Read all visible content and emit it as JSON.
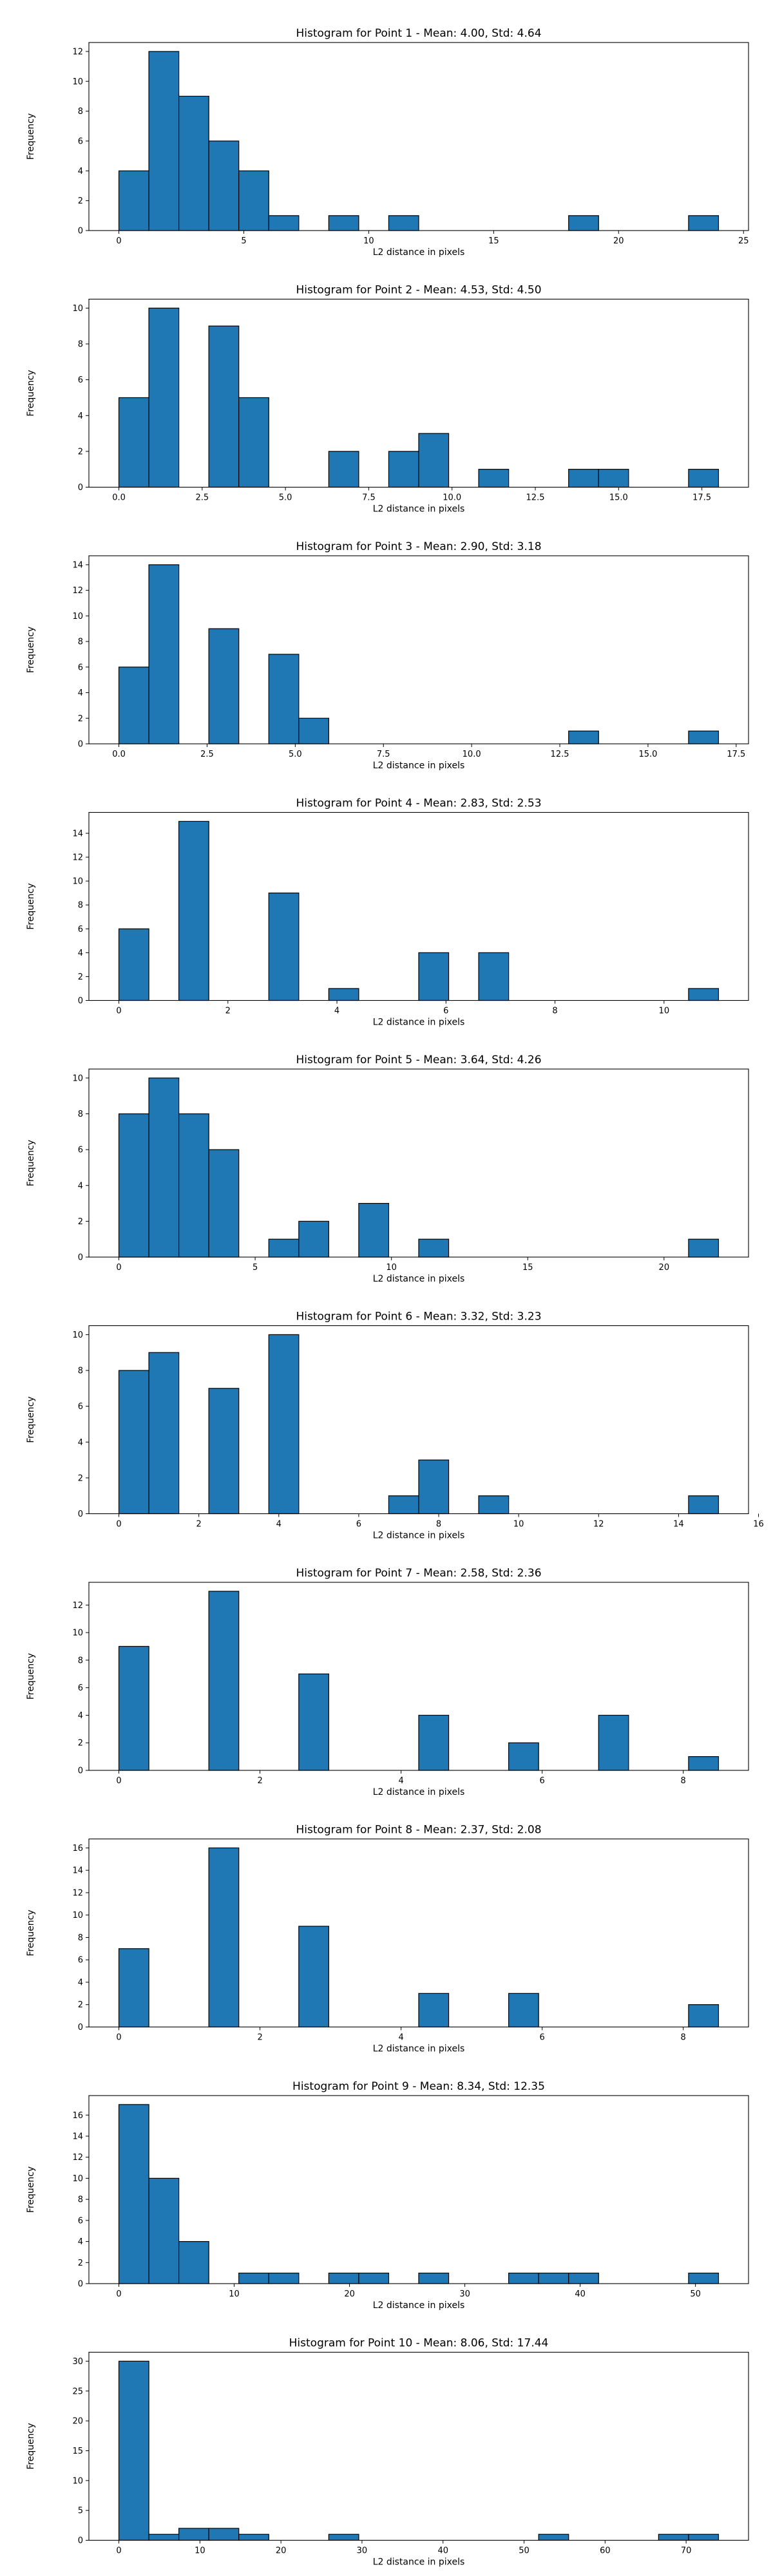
{
  "figure": {
    "colors": {
      "bar_fill": "#1f77b4",
      "bar_edge": "#000000",
      "axes": "#000000",
      "background": "#ffffff"
    }
  },
  "chart_data": [
    {
      "type": "bar",
      "title": "Histogram for Point 1 - Mean: 4.00, Std: 4.64",
      "xlabel": "L2 distance in pixels",
      "ylabel": "Frequency",
      "xlim": [
        -1.2,
        25.2
      ],
      "ylim": [
        0,
        12.6
      ],
      "xticks": [
        0,
        5,
        10,
        15,
        20,
        25
      ],
      "xtick_labels": [
        "0",
        "5",
        "10",
        "15",
        "20",
        "25"
      ],
      "yticks": [
        0,
        2,
        4,
        6,
        8,
        10,
        12
      ],
      "ytick_labels": [
        "0",
        "2",
        "4",
        "6",
        "8",
        "10",
        "12"
      ],
      "bins": [
        {
          "start": 0.0,
          "end": 1.2,
          "count": 4
        },
        {
          "start": 1.2,
          "end": 2.4,
          "count": 12
        },
        {
          "start": 2.4,
          "end": 3.6,
          "count": 9
        },
        {
          "start": 3.6,
          "end": 4.8,
          "count": 6
        },
        {
          "start": 4.8,
          "end": 6.0,
          "count": 4
        },
        {
          "start": 6.0,
          "end": 7.2,
          "count": 1
        },
        {
          "start": 8.4,
          "end": 9.6,
          "count": 1
        },
        {
          "start": 10.8,
          "end": 12.0,
          "count": 1
        },
        {
          "start": 18.0,
          "end": 19.2,
          "count": 1
        },
        {
          "start": 22.8,
          "end": 24.0,
          "count": 1
        }
      ]
    },
    {
      "type": "bar",
      "title": "Histogram for Point 2 - Mean: 4.53, Std: 4.50",
      "xlabel": "L2 distance in pixels",
      "ylabel": "Frequency",
      "xlim": [
        -0.9,
        18.9
      ],
      "ylim": [
        0,
        10.5
      ],
      "xticks": [
        0,
        2.5,
        5,
        7.5,
        10,
        12.5,
        15,
        17.5
      ],
      "xtick_labels": [
        "0.0",
        "2.5",
        "5.0",
        "7.5",
        "10.0",
        "12.5",
        "15.0",
        "17.5"
      ],
      "yticks": [
        0,
        2,
        4,
        6,
        8,
        10
      ],
      "ytick_labels": [
        "0",
        "2",
        "4",
        "6",
        "8",
        "10"
      ],
      "bins": [
        {
          "start": 0.0,
          "end": 0.9,
          "count": 5
        },
        {
          "start": 0.9,
          "end": 1.8,
          "count": 10
        },
        {
          "start": 2.7,
          "end": 3.6,
          "count": 9
        },
        {
          "start": 3.6,
          "end": 4.5,
          "count": 5
        },
        {
          "start": 6.3,
          "end": 7.2,
          "count": 2
        },
        {
          "start": 8.1,
          "end": 9.0,
          "count": 2
        },
        {
          "start": 9.0,
          "end": 9.9,
          "count": 3
        },
        {
          "start": 10.8,
          "end": 11.7,
          "count": 1
        },
        {
          "start": 13.5,
          "end": 14.4,
          "count": 1
        },
        {
          "start": 14.4,
          "end": 15.3,
          "count": 1
        },
        {
          "start": 17.1,
          "end": 18.0,
          "count": 1
        }
      ]
    },
    {
      "type": "bar",
      "title": "Histogram for Point 3 - Mean: 2.90, Std: 3.18",
      "xlabel": "L2 distance in pixels",
      "ylabel": "Frequency",
      "xlim": [
        -0.85,
        17.85
      ],
      "ylim": [
        0,
        14.7
      ],
      "xticks": [
        0,
        2.5,
        5,
        7.5,
        10,
        12.5,
        15,
        17.5
      ],
      "xtick_labels": [
        "0.0",
        "2.5",
        "5.0",
        "7.5",
        "10.0",
        "12.5",
        "15.0",
        "17.5"
      ],
      "yticks": [
        0,
        2,
        4,
        6,
        8,
        10,
        12,
        14
      ],
      "ytick_labels": [
        "0",
        "2",
        "4",
        "6",
        "8",
        "10",
        "12",
        "14"
      ],
      "bins": [
        {
          "start": 0.0,
          "end": 0.85,
          "count": 6
        },
        {
          "start": 0.85,
          "end": 1.7,
          "count": 14
        },
        {
          "start": 2.55,
          "end": 3.4,
          "count": 9
        },
        {
          "start": 4.25,
          "end": 5.1,
          "count": 7
        },
        {
          "start": 5.1,
          "end": 5.95,
          "count": 2
        },
        {
          "start": 12.75,
          "end": 13.6,
          "count": 1
        },
        {
          "start": 16.15,
          "end": 17.0,
          "count": 1
        }
      ]
    },
    {
      "type": "bar",
      "title": "Histogram for Point 4 - Mean: 2.83, Std: 2.53",
      "xlabel": "L2 distance in pixels",
      "ylabel": "Frequency",
      "xlim": [
        -0.55,
        11.55
      ],
      "ylim": [
        0,
        15.75
      ],
      "xticks": [
        0,
        2,
        4,
        6,
        8,
        10
      ],
      "xtick_labels": [
        "0",
        "2",
        "4",
        "6",
        "8",
        "10"
      ],
      "yticks": [
        0,
        2,
        4,
        6,
        8,
        10,
        12,
        14
      ],
      "ytick_labels": [
        "0",
        "2",
        "4",
        "6",
        "8",
        "10",
        "12",
        "14"
      ],
      "bins": [
        {
          "start": 0.0,
          "end": 0.55,
          "count": 6
        },
        {
          "start": 1.1,
          "end": 1.65,
          "count": 15
        },
        {
          "start": 2.75,
          "end": 3.3,
          "count": 9
        },
        {
          "start": 3.85,
          "end": 4.4,
          "count": 1
        },
        {
          "start": 5.5,
          "end": 6.05,
          "count": 4
        },
        {
          "start": 6.6,
          "end": 7.15,
          "count": 4
        },
        {
          "start": 10.45,
          "end": 11.0,
          "count": 1
        }
      ]
    },
    {
      "type": "bar",
      "title": "Histogram for Point 5 - Mean: 3.64, Std: 4.26",
      "xlabel": "L2 distance in pixels",
      "ylabel": "Frequency",
      "xlim": [
        -1.1,
        23.1
      ],
      "ylim": [
        0,
        10.5
      ],
      "xticks": [
        0,
        5,
        10,
        15,
        20
      ],
      "xtick_labels": [
        "0",
        "5",
        "10",
        "15",
        "20"
      ],
      "yticks": [
        0,
        2,
        4,
        6,
        8,
        10
      ],
      "ytick_labels": [
        "0",
        "2",
        "4",
        "6",
        "8",
        "10"
      ],
      "bins": [
        {
          "start": 0.0,
          "end": 1.1,
          "count": 8
        },
        {
          "start": 1.1,
          "end": 2.2,
          "count": 10
        },
        {
          "start": 2.2,
          "end": 3.3,
          "count": 8
        },
        {
          "start": 3.3,
          "end": 4.4,
          "count": 6
        },
        {
          "start": 5.5,
          "end": 6.6,
          "count": 1
        },
        {
          "start": 6.6,
          "end": 7.7,
          "count": 2
        },
        {
          "start": 8.8,
          "end": 9.9,
          "count": 3
        },
        {
          "start": 11.0,
          "end": 12.1,
          "count": 1
        },
        {
          "start": 20.9,
          "end": 22.0,
          "count": 1
        }
      ]
    },
    {
      "type": "bar",
      "title": "Histogram for Point 6 - Mean: 3.32, Std: 3.23",
      "xlabel": "L2 distance in pixels",
      "ylabel": "Frequency",
      "xlim": [
        -0.75,
        15.75
      ],
      "ylim": [
        0,
        10.5
      ],
      "xticks": [
        0,
        2,
        4,
        6,
        8,
        10,
        12,
        14,
        16
      ],
      "xtick_labels": [
        "0",
        "2",
        "4",
        "6",
        "8",
        "10",
        "12",
        "14",
        "16"
      ],
      "yticks": [
        0,
        2,
        4,
        6,
        8,
        10
      ],
      "ytick_labels": [
        "0",
        "2",
        "4",
        "6",
        "8",
        "10"
      ],
      "bins": [
        {
          "start": 0.0,
          "end": 0.75,
          "count": 8
        },
        {
          "start": 0.75,
          "end": 1.5,
          "count": 9
        },
        {
          "start": 2.25,
          "end": 3.0,
          "count": 7
        },
        {
          "start": 3.75,
          "end": 4.5,
          "count": 10
        },
        {
          "start": 6.75,
          "end": 7.5,
          "count": 1
        },
        {
          "start": 7.5,
          "end": 8.25,
          "count": 3
        },
        {
          "start": 9.0,
          "end": 9.75,
          "count": 1
        },
        {
          "start": 14.25,
          "end": 15.0,
          "count": 1
        }
      ]
    },
    {
      "type": "bar",
      "title": "Histogram for Point 7 - Mean: 2.58, Std: 2.36",
      "xlabel": "L2 distance in pixels",
      "ylabel": "Frequency",
      "xlim": [
        -0.425,
        8.925
      ],
      "ylim": [
        0,
        13.65
      ],
      "xticks": [
        0,
        2,
        4,
        6,
        8
      ],
      "xtick_labels": [
        "0",
        "2",
        "4",
        "6",
        "8"
      ],
      "yticks": [
        0,
        2,
        4,
        6,
        8,
        10,
        12
      ],
      "ytick_labels": [
        "0",
        "2",
        "4",
        "6",
        "8",
        "10",
        "12"
      ],
      "bins": [
        {
          "start": 0.0,
          "end": 0.425,
          "count": 9
        },
        {
          "start": 1.275,
          "end": 1.7,
          "count": 13
        },
        {
          "start": 2.55,
          "end": 2.975,
          "count": 7
        },
        {
          "start": 4.25,
          "end": 4.675,
          "count": 4
        },
        {
          "start": 5.525,
          "end": 5.95,
          "count": 2
        },
        {
          "start": 6.8,
          "end": 7.225,
          "count": 4
        },
        {
          "start": 8.075,
          "end": 8.5,
          "count": 1
        }
      ]
    },
    {
      "type": "bar",
      "title": "Histogram for Point 8 - Mean: 2.37, Std: 2.08",
      "xlabel": "L2 distance in pixels",
      "ylabel": "Frequency",
      "xlim": [
        -0.425,
        8.925
      ],
      "ylim": [
        0,
        16.8
      ],
      "xticks": [
        0,
        2,
        4,
        6,
        8
      ],
      "xtick_labels": [
        "0",
        "2",
        "4",
        "6",
        "8"
      ],
      "yticks": [
        0,
        2,
        4,
        6,
        8,
        10,
        12,
        14,
        16
      ],
      "ytick_labels": [
        "0",
        "2",
        "4",
        "6",
        "8",
        "10",
        "12",
        "14",
        "16"
      ],
      "bins": [
        {
          "start": 0.0,
          "end": 0.425,
          "count": 7
        },
        {
          "start": 1.275,
          "end": 1.7,
          "count": 16
        },
        {
          "start": 2.55,
          "end": 2.975,
          "count": 9
        },
        {
          "start": 4.25,
          "end": 4.675,
          "count": 3
        },
        {
          "start": 5.525,
          "end": 5.95,
          "count": 3
        },
        {
          "start": 8.075,
          "end": 8.5,
          "count": 2
        }
      ]
    },
    {
      "type": "bar",
      "title": "Histogram for Point 9 - Mean: 8.34, Std: 12.35",
      "xlabel": "L2 distance in pixels",
      "ylabel": "Frequency",
      "xlim": [
        -2.6,
        54.6
      ],
      "ylim": [
        0,
        17.85
      ],
      "xticks": [
        0,
        10,
        20,
        30,
        40,
        50
      ],
      "xtick_labels": [
        "0",
        "10",
        "20",
        "30",
        "40",
        "50"
      ],
      "yticks": [
        0,
        2,
        4,
        6,
        8,
        10,
        12,
        14,
        16
      ],
      "ytick_labels": [
        "0",
        "2",
        "4",
        "6",
        "8",
        "10",
        "12",
        "14",
        "16"
      ],
      "bins": [
        {
          "start": 0.0,
          "end": 2.6,
          "count": 17
        },
        {
          "start": 2.6,
          "end": 5.2,
          "count": 10
        },
        {
          "start": 5.2,
          "end": 7.8,
          "count": 4
        },
        {
          "start": 10.4,
          "end": 13.0,
          "count": 1
        },
        {
          "start": 13.0,
          "end": 15.6,
          "count": 1
        },
        {
          "start": 18.2,
          "end": 20.8,
          "count": 1
        },
        {
          "start": 20.8,
          "end": 23.4,
          "count": 1
        },
        {
          "start": 26.0,
          "end": 28.6,
          "count": 1
        },
        {
          "start": 33.8,
          "end": 36.4,
          "count": 1
        },
        {
          "start": 36.4,
          "end": 39.0,
          "count": 1
        },
        {
          "start": 39.0,
          "end": 41.6,
          "count": 1
        },
        {
          "start": 49.4,
          "end": 52.0,
          "count": 1
        }
      ]
    },
    {
      "type": "bar",
      "title": "Histogram for Point 10 - Mean: 8.06, Std: 17.44",
      "xlabel": "L2 distance in pixels",
      "ylabel": "Frequency",
      "xlim": [
        -3.7,
        77.7
      ],
      "ylim": [
        0,
        31.5
      ],
      "xticks": [
        0,
        10,
        20,
        30,
        40,
        50,
        60,
        70
      ],
      "xtick_labels": [
        "0",
        "10",
        "20",
        "30",
        "40",
        "50",
        "60",
        "70"
      ],
      "yticks": [
        0,
        5,
        10,
        15,
        20,
        25,
        30
      ],
      "ytick_labels": [
        "0",
        "5",
        "10",
        "15",
        "20",
        "25",
        "30"
      ],
      "bins": [
        {
          "start": 0.0,
          "end": 3.7,
          "count": 30
        },
        {
          "start": 3.7,
          "end": 7.4,
          "count": 1
        },
        {
          "start": 7.4,
          "end": 11.1,
          "count": 2
        },
        {
          "start": 11.1,
          "end": 14.8,
          "count": 2
        },
        {
          "start": 14.8,
          "end": 18.5,
          "count": 1
        },
        {
          "start": 25.9,
          "end": 29.6,
          "count": 1
        },
        {
          "start": 51.8,
          "end": 55.5,
          "count": 1
        },
        {
          "start": 66.6,
          "end": 70.3,
          "count": 1
        },
        {
          "start": 70.3,
          "end": 74.0,
          "count": 1
        }
      ]
    }
  ]
}
